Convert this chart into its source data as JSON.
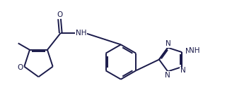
{
  "bg_color": "#ffffff",
  "line_color": "#1a1a4a",
  "line_width": 1.4,
  "font_size": 7.5,
  "figsize": [
    3.28,
    1.52
  ],
  "dpi": 100,
  "xlim": [
    0,
    9.5
  ],
  "ylim": [
    0,
    4.4
  ]
}
